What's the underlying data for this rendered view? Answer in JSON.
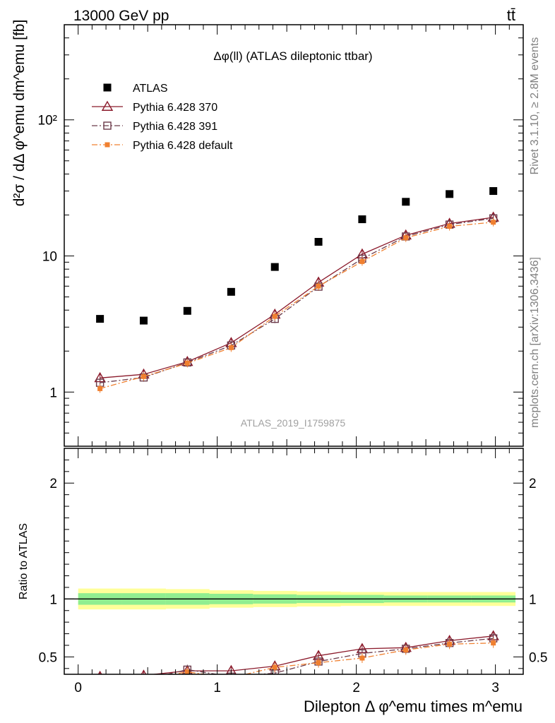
{
  "header": {
    "energy_label": "13000 GeV pp",
    "process_label": "tt̄"
  },
  "side_labels": {
    "rivet": "Rivet 3.1.10, ≥ 2.8M events",
    "mcplots": "mcplots.cern.ch [arXiv:1306.3436]"
  },
  "chart_data": [
    {
      "type": "scatter",
      "title": "Δφ(ll) (ATLAS dileptonic ttbar)",
      "analysis_id": "ATLAS_2019_I1759875",
      "ylabel": "d²σ / dΔ φ^emu dm^emu [fb]",
      "yscale": "log",
      "xlim": [
        -0.1,
        3.2
      ],
      "ylim": [
        0.4,
        500
      ],
      "y_tick_labels": [
        "1",
        "10",
        "10²"
      ],
      "legend_position": "top-left",
      "x": [
        0.157,
        0.471,
        0.785,
        1.1,
        1.414,
        1.728,
        2.042,
        2.356,
        2.67,
        2.985
      ],
      "series": [
        {
          "name": "ATLAS",
          "color": "#000000",
          "marker": "filled-square",
          "values": [
            3.45,
            3.35,
            3.95,
            5.45,
            8.3,
            12.7,
            18.6,
            25.0,
            28.5,
            30.0
          ]
        },
        {
          "name": "Pythia 6.428 370",
          "color": "#8b1a2b",
          "marker": "open-triangle",
          "line": "solid",
          "values": [
            1.27,
            1.35,
            1.67,
            2.3,
            3.72,
            6.4,
            10.3,
            14.2,
            17.3,
            19.2
          ]
        },
        {
          "name": "Pythia 6.428 391",
          "color": "#6b3a4a",
          "marker": "open-square",
          "line": "dash-dot",
          "values": [
            1.17,
            1.28,
            1.65,
            2.2,
            3.45,
            5.95,
            9.55,
            13.9,
            17.0,
            18.9
          ]
        },
        {
          "name": "Pythia 6.428 default",
          "color": "#f08030",
          "marker": "filled-small-square",
          "line": "dash-dot",
          "values": [
            1.06,
            1.3,
            1.63,
            2.12,
            3.6,
            6.0,
            9.1,
            13.6,
            16.5,
            17.7
          ]
        }
      ]
    },
    {
      "type": "line",
      "ylabel": "Ratio to ATLAS",
      "xlabel": "Dilepton Δ φ^emu times m^emu",
      "xlim": [
        -0.1,
        3.2
      ],
      "ylim": [
        0.35,
        2.3
      ],
      "x_tick_labels": [
        "0",
        "1",
        "2",
        "3"
      ],
      "y_tick_labels": [
        "0.5",
        "1",
        "2"
      ],
      "x": [
        0.157,
        0.471,
        0.785,
        1.1,
        1.414,
        1.728,
        2.042,
        2.356,
        2.67,
        2.985
      ],
      "bands": {
        "stat_half_width": [
          0.05,
          0.05,
          0.05,
          0.045,
          0.04,
          0.035,
          0.035,
          0.03,
          0.03,
          0.03
        ],
        "total_half_width": [
          0.09,
          0.09,
          0.085,
          0.075,
          0.07,
          0.065,
          0.06,
          0.06,
          0.06,
          0.06
        ],
        "stat_color": "#90ee90",
        "total_color": "#ffff99"
      },
      "series": [
        {
          "name": "Pythia 6.428 370",
          "color": "#8b1a2b",
          "values": [
            0.33,
            0.34,
            0.38,
            0.38,
            0.42,
            0.51,
            0.57,
            0.58,
            0.64,
            0.68
          ]
        },
        {
          "name": "Pythia 6.428 391",
          "color": "#6b3a4a",
          "values": [
            0.31,
            0.3,
            0.39,
            0.33,
            0.36,
            0.46,
            0.53,
            0.57,
            0.62,
            0.66
          ]
        },
        {
          "name": "Pythia 6.428 default",
          "color": "#f08030",
          "values": [
            0.3,
            0.31,
            0.37,
            0.32,
            0.41,
            0.45,
            0.49,
            0.56,
            0.61,
            0.62
          ]
        }
      ]
    }
  ]
}
